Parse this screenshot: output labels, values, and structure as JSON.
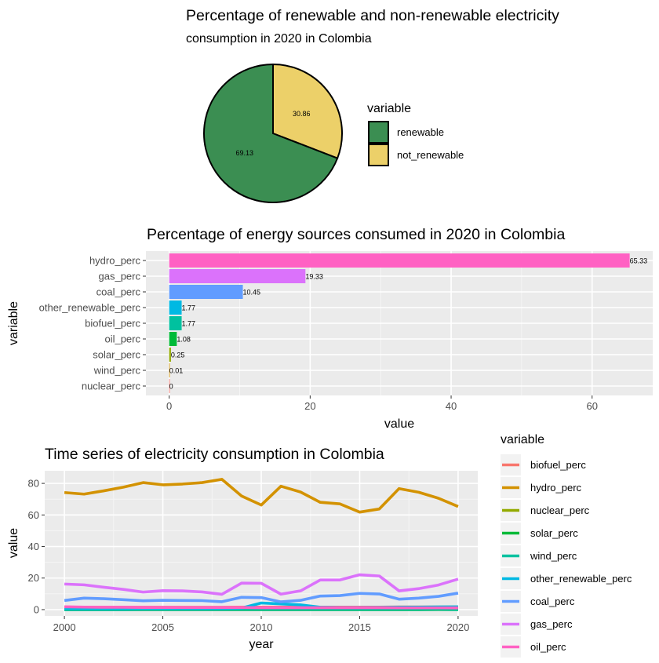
{
  "pie": {
    "title_line1": "Percentage of renewable and non-renewable electricity",
    "title_line2": "consumption in 2020 in Colombia",
    "legend_title": "variable",
    "legend_position": "right",
    "colors": {
      "renewable": "#3B8E52",
      "not_renewable": "#ECD069"
    },
    "chart_data": {
      "type": "pie",
      "categories": [
        "renewable",
        "not_renewable"
      ],
      "values": [
        69.13,
        30.86
      ]
    }
  },
  "bar": {
    "title": "Percentage of energy sources consumed in 2020 in Colombia",
    "xlabel": "value",
    "ylabel": "variable",
    "chart_data": {
      "type": "bar",
      "orientation": "horizontal",
      "categories": [
        "hydro_perc",
        "gas_perc",
        "coal_perc",
        "other_renewable_perc",
        "biofuel_perc",
        "oil_perc",
        "solar_perc",
        "wind_perc",
        "nuclear_perc"
      ],
      "values": [
        65.33,
        19.33,
        10.45,
        1.77,
        1.77,
        1.08,
        0.25,
        0.01,
        0
      ],
      "labels": [
        "65.33",
        "19.33",
        "10.45",
        "1.77",
        "1.77",
        "1.08",
        "0.25",
        "0.01",
        "0"
      ],
      "colors": [
        "#FF61C3",
        "#DB72FB",
        "#619CFF",
        "#00B9E3",
        "#00C19F",
        "#00BA38",
        "#93AA00",
        "#D39200",
        "#F8766D"
      ],
      "xlim": [
        -3.3,
        68.6
      ],
      "xticks": [
        0,
        20,
        40,
        60
      ],
      "grid": true
    }
  },
  "line": {
    "title": "Time series of electricity consumption in Colombia",
    "xlabel": "year",
    "ylabel": "value",
    "legend_title": "variable",
    "legend_position": "right",
    "chart_data": {
      "type": "line",
      "x": [
        2000,
        2001,
        2002,
        2003,
        2004,
        2005,
        2006,
        2007,
        2008,
        2009,
        2010,
        2011,
        2012,
        2013,
        2014,
        2015,
        2016,
        2017,
        2018,
        2019,
        2020
      ],
      "xlim": [
        1999,
        2021
      ],
      "ylim": [
        -4,
        88
      ],
      "xticks": [
        2000,
        2005,
        2010,
        2015,
        2020
      ],
      "yticks": [
        0,
        20,
        40,
        60,
        80
      ],
      "grid": true,
      "series": [
        {
          "name": "biofuel_perc",
          "color": "#F8766D",
          "values": [
            1.6,
            1.6,
            1.5,
            1.5,
            1.5,
            1.5,
            1.5,
            1.5,
            1.5,
            1.6,
            1.6,
            1.6,
            1.6,
            1.6,
            1.6,
            1.6,
            1.6,
            1.7,
            1.7,
            1.7,
            1.77
          ]
        },
        {
          "name": "hydro_perc",
          "color": "#D39200",
          "values": [
            74.2,
            73.2,
            75.3,
            77.6,
            80.5,
            79.1,
            79.6,
            80.5,
            82.6,
            72.0,
            66.3,
            78.2,
            74.5,
            68.0,
            67.0,
            61.8,
            63.8,
            76.7,
            74.4,
            70.6,
            65.33
          ]
        },
        {
          "name": "nuclear_perc",
          "color": "#93AA00",
          "values": [
            0,
            0,
            0,
            0,
            0,
            0,
            0,
            0,
            0,
            0,
            0,
            0,
            0,
            0,
            0,
            0,
            0,
            0,
            0,
            0,
            0
          ]
        },
        {
          "name": "solar_perc",
          "color": "#00BA38",
          "values": [
            0,
            0,
            0,
            0,
            0,
            0,
            0,
            0,
            0,
            0,
            0,
            0,
            0,
            0,
            0,
            0,
            0,
            0,
            0,
            0.1,
            0.25
          ]
        },
        {
          "name": "wind_perc",
          "color": "#00C19F",
          "values": [
            0,
            0,
            0,
            0,
            0.1,
            0.1,
            0.1,
            0.1,
            0.1,
            0.1,
            0.1,
            0.1,
            0.1,
            0.1,
            0.1,
            0.1,
            0.1,
            0.1,
            0.1,
            0.1,
            0.01
          ]
        },
        {
          "name": "other_renewable_perc",
          "color": "#00B9E3",
          "values": [
            0.6,
            0.6,
            0.6,
            0.6,
            0.6,
            0.6,
            0.6,
            0.6,
            0.7,
            1.0,
            4.2,
            3.6,
            3.0,
            1.5,
            1.3,
            1.3,
            1.4,
            1.5,
            1.6,
            1.7,
            1.77
          ]
        },
        {
          "name": "coal_perc",
          "color": "#619CFF",
          "values": [
            5.8,
            7.3,
            6.9,
            6.3,
            5.6,
            5.9,
            5.8,
            5.7,
            5.0,
            7.8,
            7.6,
            4.9,
            5.9,
            8.6,
            8.9,
            10.3,
            9.9,
            6.6,
            7.3,
            8.4,
            10.45
          ]
        },
        {
          "name": "gas_perc",
          "color": "#DB72FB",
          "values": [
            16.2,
            15.7,
            14.2,
            12.8,
            11.1,
            12.0,
            11.9,
            11.2,
            9.7,
            16.8,
            16.7,
            9.8,
            11.9,
            18.8,
            18.8,
            22.1,
            21.3,
            11.9,
            13.3,
            15.6,
            19.33
          ]
        },
        {
          "name": "oil_perc",
          "color": "#FF61C3",
          "values": [
            1.8,
            1.6,
            1.5,
            1.5,
            1.4,
            1.4,
            1.3,
            1.3,
            1.3,
            1.3,
            1.2,
            1.2,
            1.2,
            1.2,
            1.2,
            1.2,
            1.2,
            1.1,
            1.1,
            1.1,
            1.08
          ]
        }
      ]
    }
  }
}
